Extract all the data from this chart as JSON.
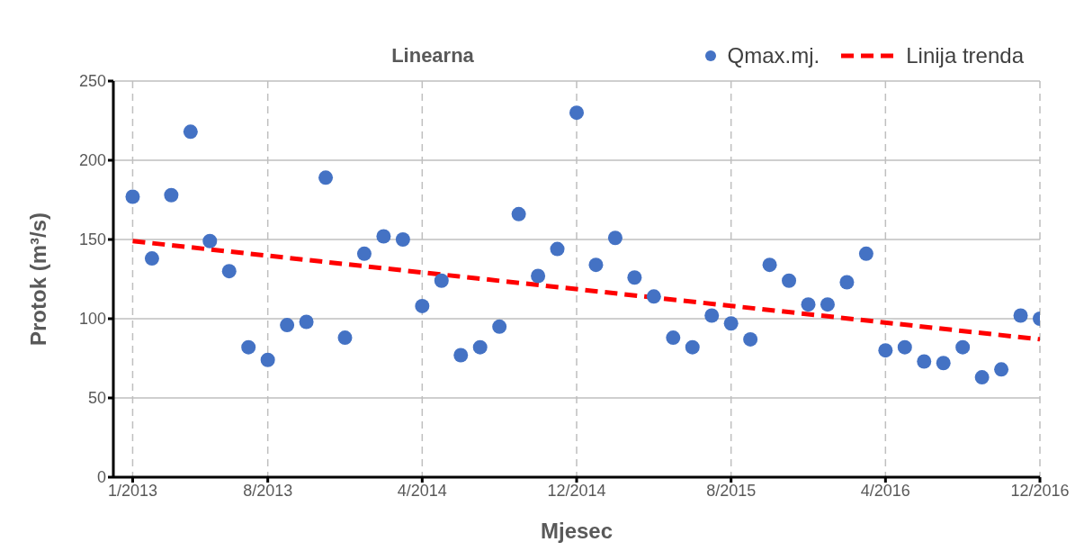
{
  "chart_data": {
    "type": "scatter",
    "title": "Linearna",
    "xlabel": "Mjesec",
    "ylabel": "Protok (m³/s)",
    "x": [
      "2013-01",
      "2013-02",
      "2013-03",
      "2013-04",
      "2013-05",
      "2013-06",
      "2013-07",
      "2013-08",
      "2013-09",
      "2013-10",
      "2013-11",
      "2013-12",
      "2014-01",
      "2014-02",
      "2014-03",
      "2014-04",
      "2014-05",
      "2014-06",
      "2014-07",
      "2014-08",
      "2014-09",
      "2014-10",
      "2014-11",
      "2014-12",
      "2015-01",
      "2015-02",
      "2015-03",
      "2015-04",
      "2015-05",
      "2015-06",
      "2015-07",
      "2015-08",
      "2015-09",
      "2015-10",
      "2015-11",
      "2015-12",
      "2016-01",
      "2016-02",
      "2016-03",
      "2016-04",
      "2016-05",
      "2016-06",
      "2016-07",
      "2016-08",
      "2016-09",
      "2016-10",
      "2016-11",
      "2016-12"
    ],
    "series": [
      {
        "name": "Qmax.mj.",
        "color": "#4472c4",
        "marker": "circle",
        "values": [
          177,
          138,
          178,
          218,
          149,
          130,
          82,
          74,
          96,
          98,
          189,
          88,
          141,
          152,
          150,
          108,
          124,
          77,
          82,
          95,
          166,
          127,
          144,
          230,
          134,
          151,
          126,
          114,
          88,
          82,
          102,
          97,
          87,
          134,
          124,
          109,
          109,
          123,
          141,
          80,
          82,
          73,
          72,
          82,
          63,
          68,
          102,
          100
        ]
      },
      {
        "name": "Linija trenda",
        "type": "line",
        "color": "#ff0000",
        "marker": "none",
        "line_style": "dashed",
        "x": [
          "2013-01",
          "2016-12"
        ],
        "values": [
          149,
          87
        ]
      }
    ],
    "xlim": [
      "2012-12",
      "2016-12"
    ],
    "xticks": [
      {
        "value": "2013-01",
        "label": "1/2013"
      },
      {
        "value": "2013-08",
        "label": "8/2013"
      },
      {
        "value": "2014-04",
        "label": "4/2014"
      },
      {
        "value": "2014-12",
        "label": "12/2014"
      },
      {
        "value": "2015-08",
        "label": "8/2015"
      },
      {
        "value": "2016-04",
        "label": "4/2016"
      },
      {
        "value": "2016-12",
        "label": "12/2016"
      }
    ],
    "ylim": [
      0,
      250
    ],
    "yticks": [
      0,
      50,
      100,
      150,
      200,
      250
    ],
    "grid": true,
    "legend": "top right"
  }
}
